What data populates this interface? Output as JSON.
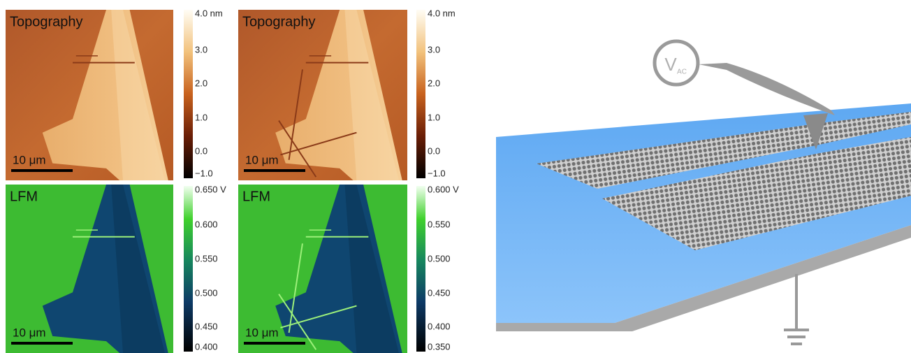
{
  "panels": [
    {
      "label": "Topography",
      "scale_bar": "10 μm",
      "colorbar_ticks": [
        "4.0 nm",
        "3.0",
        "2.0",
        "1.0",
        "0.0",
        "−1.0"
      ]
    },
    {
      "label": "Topography",
      "scale_bar": "10 μm",
      "colorbar_ticks": [
        "4.0 nm",
        "3.0",
        "2.0",
        "1.0",
        "0.0",
        "−1.0"
      ]
    },
    {
      "label": "LFM",
      "scale_bar": "10 μm",
      "colorbar_ticks": [
        "0.650 V",
        "0.600",
        "0.550",
        "0.500",
        "0.450",
        "0.400"
      ]
    },
    {
      "label": "LFM",
      "scale_bar": "10 μm",
      "colorbar_ticks": [
        "0.600 V",
        "0.550",
        "0.500",
        "0.450",
        "0.400",
        "0.350"
      ]
    }
  ],
  "schematic": {
    "source_label": "V",
    "source_subscript": "AC"
  }
}
